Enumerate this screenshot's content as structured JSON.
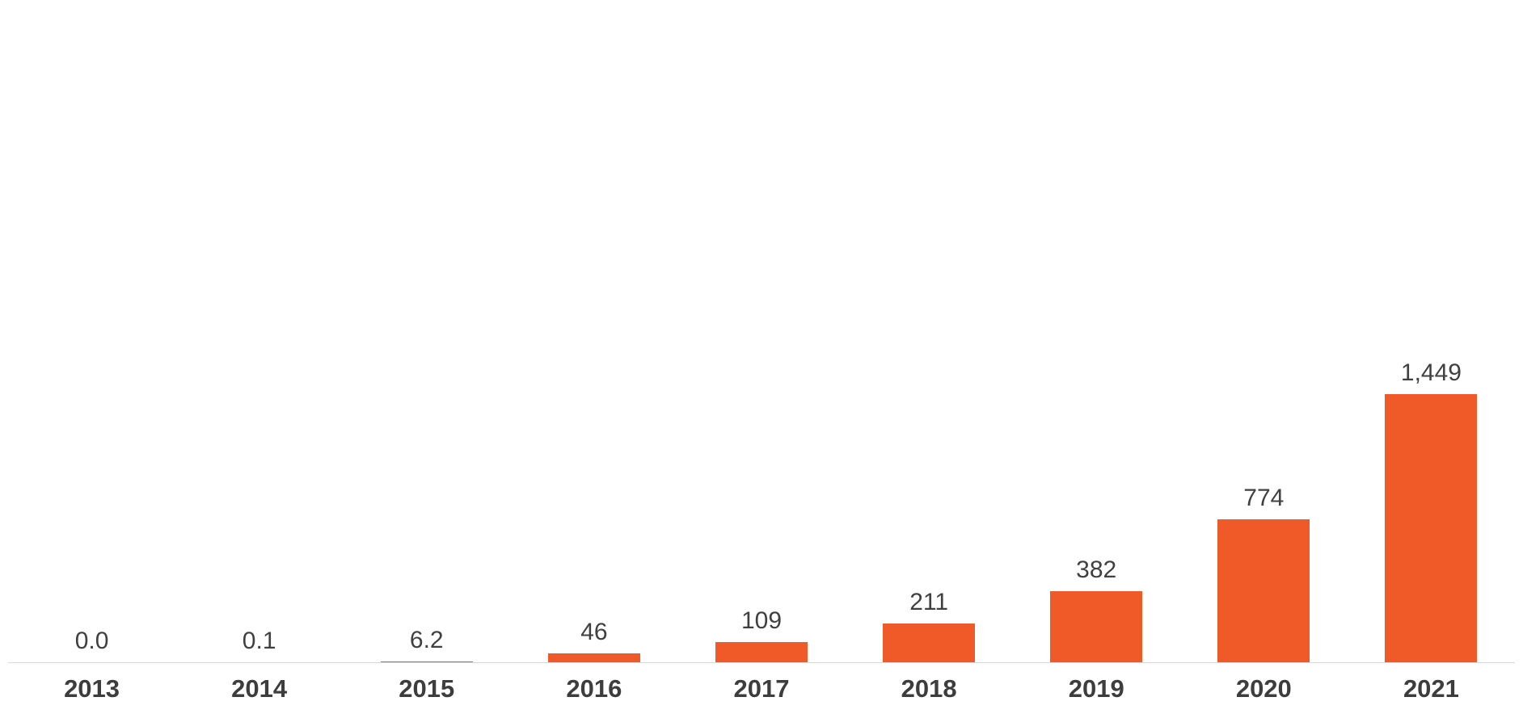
{
  "chart_data": {
    "type": "bar",
    "categories": [
      "2013",
      "2014",
      "2015",
      "2016",
      "2017",
      "2018",
      "2019",
      "2020",
      "2021"
    ],
    "values": [
      0.0,
      0.1,
      6.2,
      46,
      109,
      211,
      382,
      774,
      1449
    ],
    "value_labels": [
      "0.0",
      "0.1",
      "6.2",
      "46",
      "109",
      "211",
      "382",
      "774",
      "1,449"
    ],
    "title": "",
    "xlabel": "",
    "ylabel": "",
    "ylim": [
      0,
      1600
    ],
    "grid": false,
    "legend": false,
    "bar_color": "#f05a28",
    "value_label_color": "#404040",
    "x_label_color": "#3d3d3d",
    "axis_line_color": "#d9d9d9",
    "background_color": "#ffffff"
  }
}
